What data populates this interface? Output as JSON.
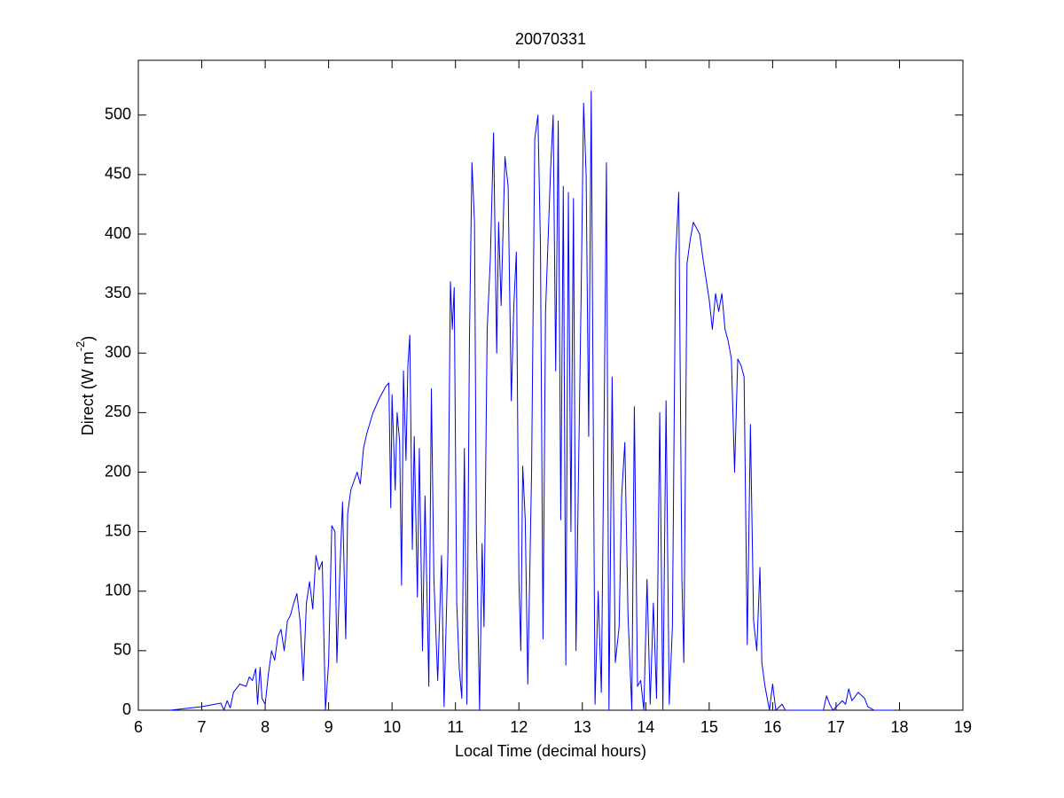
{
  "chart_data": {
    "type": "line",
    "title": "20070331",
    "x_label": "Local Time (decimal hours)",
    "y_label": {
      "text": "Direct (W m",
      "superscript": "-2",
      "suffix": ")"
    },
    "xlim": [
      6,
      19
    ],
    "xticks": [
      6,
      7,
      8,
      9,
      10,
      11,
      12,
      13,
      14,
      15,
      16,
      17,
      18,
      19
    ],
    "ylim": [
      0,
      546
    ],
    "yticks": [
      0,
      50,
      100,
      150,
      200,
      250,
      300,
      350,
      400,
      450,
      500
    ],
    "grid": false,
    "series": [
      {
        "color": "#0000ff",
        "x": [
          6.5,
          7.0,
          7.3,
          7.35,
          7.4,
          7.45,
          7.5,
          7.6,
          7.7,
          7.75,
          7.8,
          7.85,
          7.88,
          7.92,
          7.95,
          8.0,
          8.05,
          8.1,
          8.15,
          8.2,
          8.25,
          8.3,
          8.35,
          8.4,
          8.45,
          8.5,
          8.55,
          8.6,
          8.65,
          8.7,
          8.75,
          8.8,
          8.85,
          8.9,
          8.95,
          9.0,
          9.05,
          9.1,
          9.13,
          9.18,
          9.22,
          9.27,
          9.3,
          9.35,
          9.45,
          9.5,
          9.55,
          9.6,
          9.7,
          9.8,
          9.9,
          9.95,
          9.98,
          10.0,
          10.05,
          10.08,
          10.12,
          10.15,
          10.18,
          10.22,
          10.25,
          10.28,
          10.32,
          10.35,
          10.4,
          10.43,
          10.48,
          10.52,
          10.58,
          10.62,
          10.66,
          10.72,
          10.78,
          10.82,
          10.88,
          10.92,
          10.95,
          10.98,
          11.02,
          11.06,
          11.1,
          11.14,
          11.18,
          11.22,
          11.26,
          11.3,
          11.33,
          11.38,
          11.42,
          11.45,
          11.5,
          11.55,
          11.6,
          11.65,
          11.68,
          11.72,
          11.78,
          11.83,
          11.88,
          11.92,
          11.96,
          12.0,
          12.03,
          12.06,
          12.1,
          12.14,
          12.2,
          12.25,
          12.3,
          12.34,
          12.38,
          12.42,
          12.46,
          12.5,
          12.54,
          12.58,
          12.62,
          12.66,
          12.7,
          12.74,
          12.78,
          12.82,
          12.86,
          12.9,
          12.94,
          12.98,
          13.02,
          13.06,
          13.1,
          13.14,
          13.2,
          13.25,
          13.3,
          13.35,
          13.38,
          13.42,
          13.47,
          13.52,
          13.58,
          13.62,
          13.67,
          13.72,
          13.78,
          13.82,
          13.87,
          13.92,
          13.97,
          14.02,
          14.07,
          14.12,
          14.17,
          14.22,
          14.27,
          14.32,
          14.37,
          14.42,
          14.47,
          14.52,
          14.57,
          14.6,
          14.65,
          14.7,
          14.75,
          14.8,
          14.85,
          14.9,
          15.0,
          15.05,
          15.1,
          15.15,
          15.2,
          15.25,
          15.3,
          15.35,
          15.4,
          15.45,
          15.5,
          15.55,
          15.6,
          15.65,
          15.7,
          15.75,
          15.8,
          15.83,
          15.88,
          15.95,
          16.0,
          16.05,
          16.15,
          16.2,
          16.8,
          16.85,
          16.9,
          16.95,
          17.1,
          17.15,
          17.2,
          17.25,
          17.35,
          17.45,
          17.5,
          17.6,
          17.9
        ],
        "values": [
          0,
          3,
          6,
          0,
          8,
          2,
          15,
          22,
          20,
          28,
          25,
          35,
          5,
          36,
          10,
          5,
          30,
          50,
          42,
          62,
          68,
          50,
          75,
          80,
          90,
          98,
          75,
          25,
          90,
          108,
          85,
          130,
          118,
          125,
          0,
          40,
          155,
          150,
          40,
          120,
          175,
          60,
          165,
          185,
          200,
          190,
          220,
          232,
          250,
          262,
          272,
          275,
          170,
          265,
          185,
          250,
          225,
          105,
          285,
          210,
          290,
          315,
          135,
          230,
          95,
          220,
          50,
          180,
          20,
          270,
          110,
          25,
          130,
          3,
          130,
          360,
          320,
          355,
          90,
          35,
          10,
          220,
          5,
          310,
          460,
          410,
          150,
          0,
          140,
          70,
          320,
          380,
          485,
          300,
          410,
          340,
          465,
          440,
          260,
          340,
          385,
          110,
          50,
          205,
          160,
          22,
          200,
          480,
          500,
          390,
          60,
          335,
          395,
          455,
          500,
          285,
          495,
          160,
          440,
          38,
          435,
          150,
          430,
          50,
          200,
          345,
          510,
          450,
          230,
          520,
          5,
          100,
          15,
          280,
          460,
          0,
          280,
          40,
          70,
          180,
          225,
          80,
          0,
          255,
          20,
          25,
          0,
          110,
          5,
          90,
          10,
          250,
          0,
          260,
          5,
          70,
          380,
          435,
          110,
          40,
          375,
          395,
          410,
          405,
          400,
          380,
          345,
          320,
          350,
          335,
          350,
          320,
          310,
          295,
          200,
          295,
          290,
          280,
          55,
          240,
          75,
          50,
          120,
          40,
          20,
          0,
          22,
          0,
          5,
          0,
          0,
          12,
          5,
          0,
          8,
          5,
          18,
          8,
          15,
          10,
          3,
          0,
          0
        ]
      }
    ]
  }
}
